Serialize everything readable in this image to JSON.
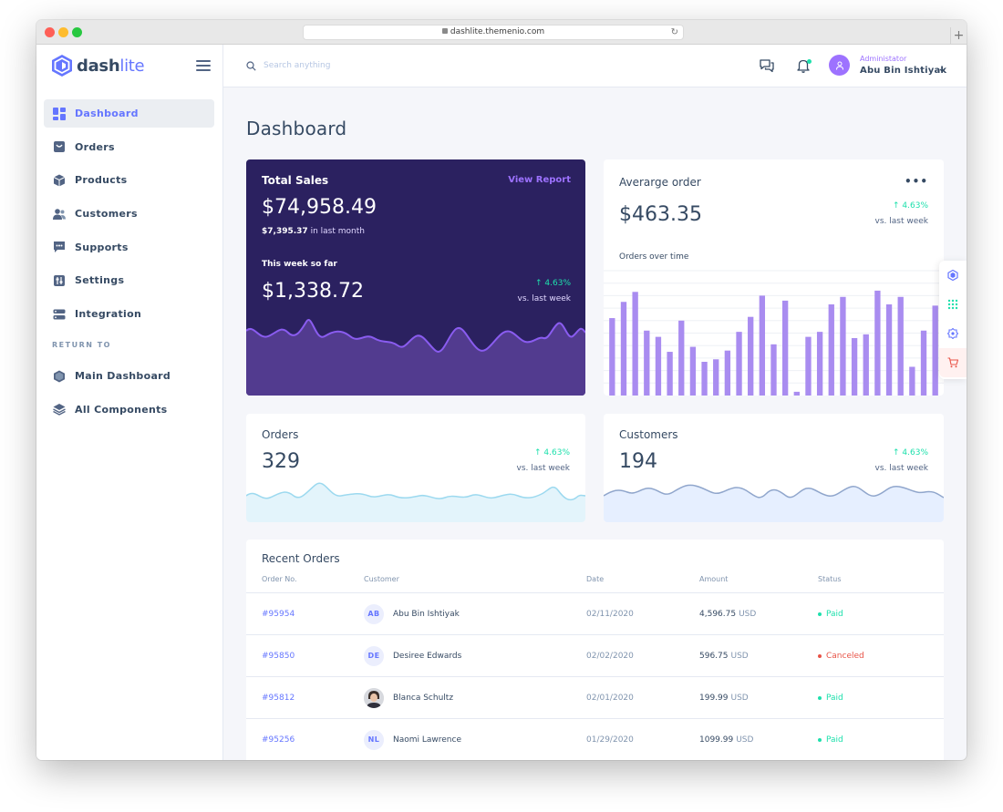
{
  "browser": {
    "url": "dashlite.themenio.com"
  },
  "brand": {
    "name_bold": "dash",
    "name_light": "lite"
  },
  "sidebar": {
    "items": [
      {
        "label": "Dashboard",
        "icon": "dashboard-icon",
        "active": true
      },
      {
        "label": "Orders",
        "icon": "orders-icon"
      },
      {
        "label": "Products",
        "icon": "products-icon"
      },
      {
        "label": "Customers",
        "icon": "customers-icon"
      },
      {
        "label": "Supports",
        "icon": "supports-icon"
      },
      {
        "label": "Settings",
        "icon": "settings-icon"
      },
      {
        "label": "Integration",
        "icon": "integration-icon"
      }
    ],
    "return_heading": "RETURN TO",
    "return_items": [
      {
        "label": "Main Dashboard",
        "icon": "hexagon-icon"
      },
      {
        "label": "All Components",
        "icon": "layers-icon"
      }
    ]
  },
  "header": {
    "search_placeholder": "Search anything",
    "user_role": "Administator",
    "user_name": "Abu Bin Ishtiyak"
  },
  "page": {
    "title": "Dashboard"
  },
  "total_sales": {
    "title": "Total Sales",
    "link": "View Report",
    "value": "$74,958.49",
    "last_month_value": "$7,395.37",
    "last_month_text": "in last month",
    "week_label": "This week so far",
    "week_value": "$1,338.72",
    "change": "↑ 4.63%",
    "change_sub": "vs. last week"
  },
  "average_order": {
    "title": "Averarge order",
    "value": "$463.35",
    "change": "↑ 4.63%",
    "change_sub": "vs. last week",
    "chart_label": "Orders over time"
  },
  "orders_card": {
    "title": "Orders",
    "value": "329",
    "change": "↑ 4.63%",
    "change_sub": "vs. last week"
  },
  "customers_card": {
    "title": "Customers",
    "value": "194",
    "change": "↑ 4.63%",
    "change_sub": "vs. last week"
  },
  "recent_orders": {
    "title": "Recent Orders",
    "columns": [
      "Order No.",
      "Customer",
      "Date",
      "Amount",
      "Status"
    ],
    "rows": [
      {
        "no": "#95954",
        "initials": "AB",
        "customer": "Abu Bin Ishtiyak",
        "date": "02/11/2020",
        "amount": "4,596.75",
        "currency": "USD",
        "status": "Paid",
        "status_color": "#1ee0ac"
      },
      {
        "no": "#95850",
        "initials": "DE",
        "customer": "Desiree Edwards",
        "date": "02/02/2020",
        "amount": "596.75",
        "currency": "USD",
        "status": "Canceled",
        "status_color": "#e85347"
      },
      {
        "no": "#95812",
        "initials": "",
        "customer": "Blanca Schultz",
        "date": "02/01/2020",
        "amount": "199.99",
        "currency": "USD",
        "status": "Paid",
        "status_color": "#1ee0ac"
      },
      {
        "no": "#95256",
        "initials": "NL",
        "customer": "Naomi Lawrence",
        "date": "01/29/2020",
        "amount": "1099.99",
        "currency": "USD",
        "status": "Paid",
        "status_color": "#1ee0ac"
      }
    ]
  },
  "colors": {
    "accent": "#6576ff",
    "purple": "#9d72ff",
    "success": "#1ee0ac",
    "danger": "#e85347",
    "sales_bg": "#2b2160",
    "bar": "#a98cf0"
  },
  "chart_data": {
    "type": "bar",
    "values": [
      62,
      75,
      83,
      52,
      47,
      35,
      60,
      39,
      27,
      29,
      36,
      51,
      63,
      80,
      41,
      76,
      3,
      47,
      51,
      73,
      79,
      46,
      49,
      84,
      73,
      79,
      23,
      52,
      72
    ],
    "ylim": [
      0,
      100
    ]
  }
}
